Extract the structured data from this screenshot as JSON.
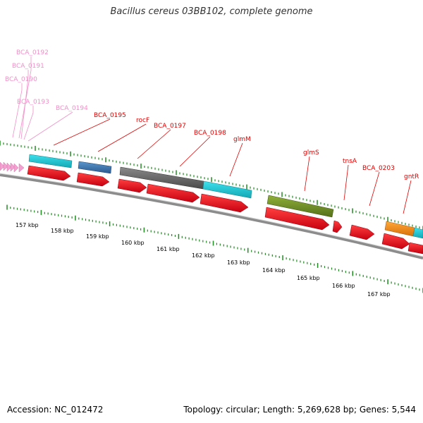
{
  "title": "Bacillus cereus 03BB102, complete genome",
  "footer": {
    "accession": "Accession: NC_012472",
    "summary": "Topology: circular; Length: 5,269,628 bp; Genes: 5,544"
  },
  "colors": {
    "tick": "#1f8a1f",
    "backbone": "#8c8c8c",
    "pink_label": "#f090c8",
    "red_label": "#e00000"
  },
  "scale_labels": [
    "157 kbp",
    "158 kbp",
    "159 kbp",
    "160 kbp",
    "161 kbp",
    "162 kbp",
    "163 kbp",
    "164 kbp",
    "165 kbp",
    "166 kbp",
    "167 kbp"
  ],
  "gene_labels": [
    {
      "text": "BCA_0192",
      "color": "pink"
    },
    {
      "text": "BCA_0191",
      "color": "pink"
    },
    {
      "text": "BCA_0190",
      "color": "pink"
    },
    {
      "text": "BCA_0193",
      "color": "pink"
    },
    {
      "text": "BCA_0194",
      "color": "pink"
    },
    {
      "text": "BCA_0195",
      "color": "red"
    },
    {
      "text": "rocF",
      "color": "red"
    },
    {
      "text": "BCA_0197",
      "color": "red"
    },
    {
      "text": "BCA_0198",
      "color": "red"
    },
    {
      "text": "glmM",
      "color": "red"
    },
    {
      "text": "glmS",
      "color": "red"
    },
    {
      "text": "tnsA",
      "color": "red"
    },
    {
      "text": "BCA_0203",
      "color": "red"
    },
    {
      "text": "gntR",
      "color": "red"
    }
  ],
  "feature_colors": {
    "cds": "#e8001c",
    "gene_cyan": "#1fc7d4",
    "gene_blue": "#3a78b0",
    "gene_gray": "#6a6a6a",
    "gene_olive": "#6e8f22",
    "gene_orange": "#f08a10",
    "pink_arrow": "#f4a0d0"
  }
}
